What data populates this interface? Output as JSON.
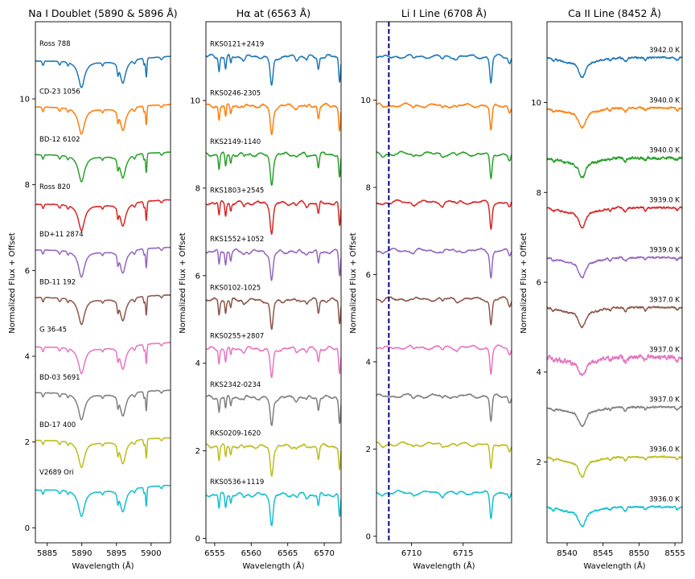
{
  "chart_data": [
    {
      "type": "line",
      "title": "Na I Doublet (5890 & 5896 Å)",
      "xlabel": "Wavelength (Å)",
      "ylabel": "Normalized Flux + Offset",
      "xlim": [
        5883.3,
        5902.8
      ],
      "ylim": [
        -0.35,
        11.8
      ],
      "xticks": [
        5885,
        5890,
        5895,
        5900
      ],
      "yticks": [
        0,
        2,
        4,
        6,
        8,
        10
      ],
      "grid": false,
      "profile": "na",
      "labels_position": "left",
      "series": [
        {
          "name": "Ross 788",
          "offset": 10.0,
          "label": "Ross 788",
          "color": "#1f77b4"
        },
        {
          "name": "CD-23 1056",
          "offset": 8.88,
          "label": "CD-23 1056",
          "color": "#ff7f0e"
        },
        {
          "name": "BD-12 6102",
          "offset": 7.77,
          "label": "BD-12 6102",
          "color": "#2ca02c"
        },
        {
          "name": "Ross 820",
          "offset": 6.66,
          "label": "Ross 820",
          "color": "#d62728"
        },
        {
          "name": "BD+11 2874",
          "offset": 5.55,
          "label": "BD+11 2874",
          "color": "#9467bd"
        },
        {
          "name": "BD-11 192",
          "offset": 4.44,
          "label": "BD-11 192",
          "color": "#8c564b"
        },
        {
          "name": "G 36-45",
          "offset": 3.33,
          "label": "G 36-45",
          "color": "#e377c2"
        },
        {
          "name": "BD-03 5691",
          "offset": 2.22,
          "label": "BD-03 5691",
          "color": "#7f7f7f"
        },
        {
          "name": "BD-17 400",
          "offset": 1.11,
          "label": "BD-17 400",
          "color": "#bcbd22"
        },
        {
          "name": "V2689 Ori",
          "offset": 0.0,
          "label": "V2689 Ori",
          "color": "#17becf"
        }
      ]
    },
    {
      "type": "line",
      "title": "Hα at (6563 Å)",
      "xlabel": "Wavelength (Å)",
      "ylabel": "Normalized Flux + Offset",
      "xlim": [
        6553.8,
        6572.3
      ],
      "ylim": [
        -0.1,
        11.8
      ],
      "xticks": [
        6555,
        6560,
        6565,
        6570
      ],
      "yticks": [
        0,
        2,
        4,
        6,
        8,
        10
      ],
      "grid": false,
      "profile": "ha",
      "labels_position": "left",
      "series": [
        {
          "name": "RKS0121+2419",
          "offset": 10.0,
          "label": "RKS0121+2419",
          "color": "#1f77b4"
        },
        {
          "name": "RKS0246-2305",
          "offset": 8.88,
          "label": "RKS0246-2305",
          "color": "#ff7f0e"
        },
        {
          "name": "RKS2149-1140",
          "offset": 7.77,
          "label": "RKS2149-1140",
          "color": "#2ca02c"
        },
        {
          "name": "RKS1803+2545",
          "offset": 6.66,
          "label": "RKS1803+2545",
          "color": "#d62728"
        },
        {
          "name": "RKS1552+1052",
          "offset": 5.55,
          "label": "RKS1552+1052",
          "color": "#9467bd"
        },
        {
          "name": "RKS0102-1025",
          "offset": 4.44,
          "label": "RKS0102-1025",
          "color": "#8c564b"
        },
        {
          "name": "RKS0255+2807",
          "offset": 3.33,
          "label": "RKS0255+2807",
          "color": "#e377c2"
        },
        {
          "name": "RKS2342-0234",
          "offset": 2.22,
          "label": "RKS2342-0234",
          "color": "#7f7f7f"
        },
        {
          "name": "RKS0209-1620",
          "offset": 1.11,
          "label": "RKS0209-1620",
          "color": "#bcbd22"
        },
        {
          "name": "RKS0536+1119",
          "offset": 0.0,
          "label": "RKS0536+1119",
          "color": "#17becf"
        }
      ]
    },
    {
      "type": "line",
      "title": "Li I Line (6708 Å)",
      "xlabel": "Wavelength (Å)",
      "ylabel": "Normalized Flux + Offset",
      "xlim": [
        6706.6,
        6719.7
      ],
      "ylim": [
        -0.15,
        11.8
      ],
      "xticks": [
        6710,
        6715
      ],
      "yticks": [
        0,
        2,
        4,
        6,
        8,
        10
      ],
      "grid": false,
      "profile": "li",
      "vline": 6707.8,
      "vline_color": "#00008b",
      "labels_position": "none",
      "series": [
        {
          "name": "",
          "offset": 10.0,
          "label": "",
          "color": "#1f77b4"
        },
        {
          "name": "",
          "offset": 8.88,
          "label": "",
          "color": "#ff7f0e"
        },
        {
          "name": "",
          "offset": 7.77,
          "label": "",
          "color": "#2ca02c"
        },
        {
          "name": "",
          "offset": 6.66,
          "label": "",
          "color": "#d62728"
        },
        {
          "name": "",
          "offset": 5.55,
          "label": "",
          "color": "#9467bd"
        },
        {
          "name": "",
          "offset": 4.44,
          "label": "",
          "color": "#8c564b"
        },
        {
          "name": "",
          "offset": 3.33,
          "label": "",
          "color": "#e377c2"
        },
        {
          "name": "",
          "offset": 2.22,
          "label": "",
          "color": "#7f7f7f"
        },
        {
          "name": "",
          "offset": 1.11,
          "label": "",
          "color": "#bcbd22"
        },
        {
          "name": "",
          "offset": 0.0,
          "label": "",
          "color": "#17becf"
        }
      ]
    },
    {
      "type": "line",
      "title": "Ca II Line (8452 Å)",
      "xlabel": "Wavelength (Å)",
      "ylabel": "Normalized Flux + Offset",
      "xlim": [
        8537.2,
        8556.0
      ],
      "ylim": [
        0.2,
        11.8
      ],
      "xticks": [
        8540,
        8545,
        8550,
        8555
      ],
      "yticks": [
        2,
        4,
        6,
        8,
        10
      ],
      "grid": false,
      "profile": "ca",
      "labels_position": "right",
      "series": [
        {
          "name": "3942.0 K",
          "offset": 10.0,
          "label": "3942.0 K",
          "color": "#1f77b4"
        },
        {
          "name": "3940.0 K",
          "offset": 8.88,
          "label": "3940.0 K",
          "color": "#ff7f0e"
        },
        {
          "name": "3940.0 K",
          "offset": 7.77,
          "label": "3940.0 K",
          "color": "#2ca02c"
        },
        {
          "name": "3939.0 K",
          "offset": 6.66,
          "label": "3939.0 K",
          "color": "#d62728"
        },
        {
          "name": "3939.0 K",
          "offset": 5.55,
          "label": "3939.0 K",
          "color": "#9467bd"
        },
        {
          "name": "3937.0 K",
          "offset": 4.44,
          "label": "3937.0 K",
          "color": "#8c564b"
        },
        {
          "name": "3937.0 K",
          "offset": 3.33,
          "label": "3937.0 K",
          "color": "#e377c2"
        },
        {
          "name": "3937.0 K",
          "offset": 2.22,
          "label": "3937.0 K",
          "color": "#7f7f7f"
        },
        {
          "name": "3936.0 K",
          "offset": 1.11,
          "label": "3936.0 K",
          "color": "#bcbd22"
        },
        {
          "name": "3936.0 K",
          "offset": 0.0,
          "label": "3936.0 K",
          "color": "#17becf"
        }
      ]
    }
  ]
}
